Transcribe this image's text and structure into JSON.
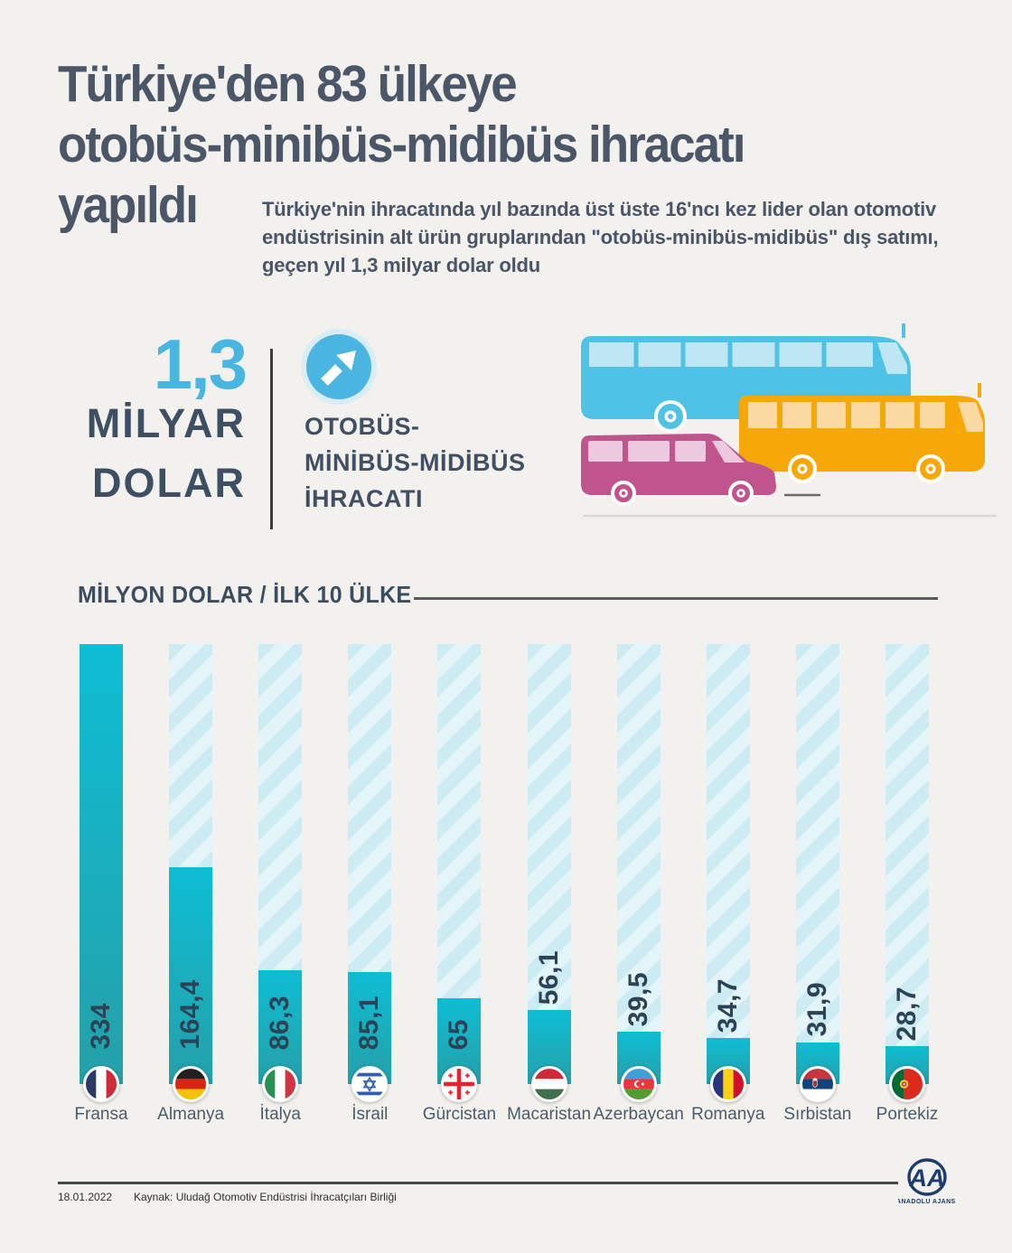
{
  "page": {
    "title_lines": [
      "Türkiye'den 83 ülkeye",
      "otobüs-minibüs-midibüs ihracatı",
      "yapıldı"
    ],
    "subtitle": "Türkiye'nin ihracatında yıl bazında üst üste 16'ncı kez lider olan otomotiv endüstrisinin alt ürün gruplarından \"otobüs-minibüs-midibüs\" dış satımı, geçen yıl 1,3 milyar dolar oldu"
  },
  "stat": {
    "value": "1,3",
    "unit_line1": "MİLYAR",
    "unit_line2": "DOLAR",
    "label_line1": "OTOBÜS-",
    "label_line2": "MİNİBÜS-MİDİBÜS",
    "label_line3": "İHRACATI",
    "icon": "arrow-up-right-icon"
  },
  "chart_data": {
    "type": "bar",
    "title": "MİLYON DOLAR / İLK 10 ÜLKE",
    "unit": "milyon dolar",
    "ylim": [
      0,
      334
    ],
    "orientation": "vertical",
    "track_style": "diagonal-stripes",
    "bars": [
      {
        "country": "Fransa",
        "value": 334,
        "label": "334",
        "flag": "france-flag-icon"
      },
      {
        "country": "Almanya",
        "value": 164.4,
        "label": "164,4",
        "flag": "germany-flag-icon"
      },
      {
        "country": "İtalya",
        "value": 86.3,
        "label": "86,3",
        "flag": "italy-flag-icon"
      },
      {
        "country": "İsrail",
        "value": 85.1,
        "label": "85,1",
        "flag": "israel-flag-icon"
      },
      {
        "country": "Gürcistan",
        "value": 65,
        "label": "65",
        "flag": "georgia-flag-icon"
      },
      {
        "country": "Macaristan",
        "value": 56.1,
        "label": "56,1",
        "flag": "hungary-flag-icon"
      },
      {
        "country": "Azerbaycan",
        "value": 39.5,
        "label": "39,5",
        "flag": "azerbaijan-flag-icon"
      },
      {
        "country": "Romanya",
        "value": 34.7,
        "label": "34,7",
        "flag": "romania-flag-icon"
      },
      {
        "country": "Sırbistan",
        "value": 31.9,
        "label": "31,9",
        "flag": "serbia-flag-icon"
      },
      {
        "country": "Portekiz",
        "value": 28.7,
        "label": "28,7",
        "flag": "portugal-flag-icon"
      }
    ]
  },
  "footer": {
    "date": "18.01.2022",
    "source": "Kaynak: Uludağ Otomotiv Endüstrisi İhracatçıları Birliği",
    "agency_logo_text": "AA",
    "agency_name": "ANADOLU AJANSI"
  },
  "colors": {
    "background": "#f2f1ee",
    "title_text": "#4b5768",
    "accent_cyan": "#49b6e1",
    "bar_fill_top": "#0ebdd4",
    "bar_fill_bottom": "#25a0a9",
    "bar_track_stripe": "#cdebf3",
    "value_text": "#2c4355",
    "bus_blue": "#4fc3e5",
    "bus_orange": "#f5a808",
    "bus_pink": "#c0558e"
  }
}
